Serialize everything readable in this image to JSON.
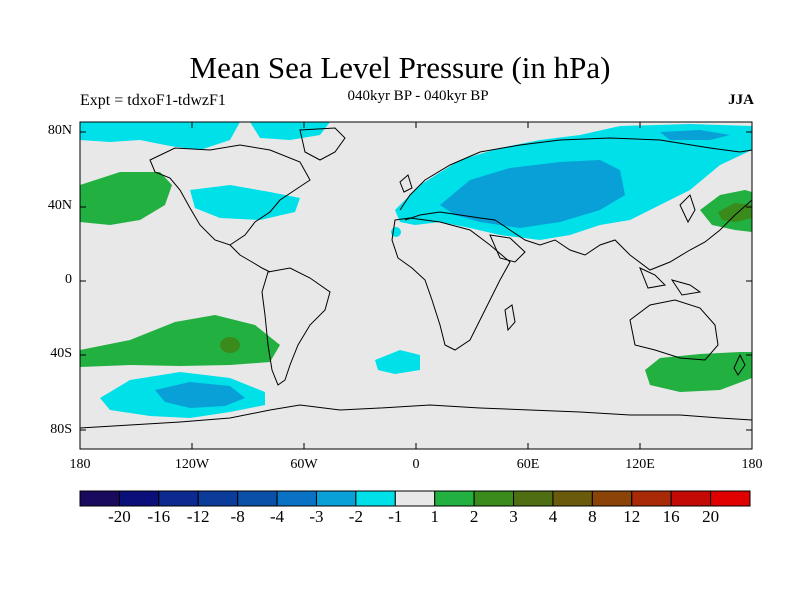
{
  "title": "Mean Sea Level Pressure (in hPa)",
  "experiment": "Expt = tdxoF1-tdwzF1",
  "subtitle": "040kyr BP - 040kyr BP",
  "season": "JJA",
  "lat_labels": [
    "80N",
    "40N",
    "0",
    "40S",
    "80S"
  ],
  "lon_labels": [
    "180",
    "120W",
    "60W",
    "0",
    "60E",
    "120E",
    "180"
  ],
  "colorbar": {
    "labels": [
      "-20",
      "-16",
      "-12",
      "-8",
      "-4",
      "-3",
      "-2",
      "-1",
      "1",
      "2",
      "3",
      "4",
      "8",
      "12",
      "16",
      "20"
    ],
    "colors": [
      "#1a0a5e",
      "#0b0f7a",
      "#0c2a8f",
      "#0c3c9a",
      "#0a4fa8",
      "#0a72c4",
      "#09a0d8",
      "#00e0e8",
      "#e8e8e8",
      "#22b040",
      "#3a8a1c",
      "#4f6e12",
      "#6a5a0c",
      "#8a4408",
      "#a82a06",
      "#c40a04",
      "#e00000"
    ]
  }
}
